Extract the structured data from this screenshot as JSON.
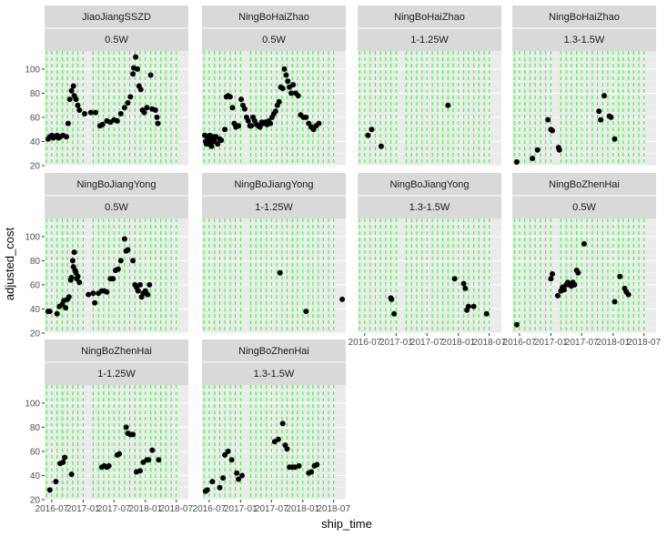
{
  "chart_data": {
    "type": "scatter",
    "xlabel": "ship_time",
    "ylabel": "adjusted_cost",
    "ylim": [
      20,
      115
    ],
    "yticks": [
      20,
      40,
      60,
      80,
      100
    ],
    "xlim": [
      "2016-05-20",
      "2018-09-10"
    ],
    "xticks": [
      "2016-07-01",
      "2017-01-01",
      "2017-07-01",
      "2018-01-01",
      "2018-07-01"
    ],
    "xtick_labels": [
      "2016-07",
      "2017-01",
      "2017-07",
      "2018-01",
      "2018-07"
    ],
    "vlines": [
      "2016-06-01",
      "2016-07-01",
      "2016-08-01",
      "2016-09-01",
      "2016-10-01",
      "2016-11-01",
      "2016-12-01",
      "2017-01-01",
      "2017-03-01",
      "2017-04-01",
      "2017-05-01",
      "2017-06-01",
      "2017-07-01",
      "2017-08-01",
      "2017-09-01",
      "2017-10-01",
      "2017-11-01",
      "2017-12-01",
      "2018-01-01",
      "2018-02-01",
      "2018-03-01",
      "2018-04-01",
      "2018-05-01",
      "2018-06-01",
      "2018-07-01"
    ],
    "vline_color": "#33ff33",
    "panel_background": "#ebebeb",
    "strip_background": "#d9d9d9",
    "point_color": "#000000",
    "panels": [
      {
        "row1": "JiaoJiangSSZD",
        "row2": "0.5W",
        "points": [
          [
            "2016-06-10",
            42
          ],
          [
            "2016-06-20",
            44
          ],
          [
            "2016-07-01",
            45
          ],
          [
            "2016-07-10",
            43
          ],
          [
            "2016-07-20",
            44
          ],
          [
            "2016-08-01",
            45
          ],
          [
            "2016-08-10",
            43
          ],
          [
            "2016-08-20",
            44
          ],
          [
            "2016-09-05",
            45
          ],
          [
            "2016-09-25",
            44
          ],
          [
            "2016-10-05",
            55
          ],
          [
            "2016-10-15",
            75
          ],
          [
            "2016-10-25",
            82
          ],
          [
            "2016-11-05",
            86
          ],
          [
            "2016-11-10",
            78
          ],
          [
            "2016-11-20",
            75
          ],
          [
            "2016-12-01",
            70
          ],
          [
            "2016-12-10",
            66
          ],
          [
            "2017-01-10",
            63
          ],
          [
            "2017-02-15",
            64
          ],
          [
            "2017-03-15",
            64
          ],
          [
            "2017-04-10",
            53
          ],
          [
            "2017-04-25",
            54
          ],
          [
            "2017-05-20",
            57
          ],
          [
            "2017-06-10",
            56
          ],
          [
            "2017-07-01",
            58
          ],
          [
            "2017-07-20",
            57
          ],
          [
            "2017-08-10",
            63
          ],
          [
            "2017-09-01",
            68
          ],
          [
            "2017-09-20",
            72
          ],
          [
            "2017-10-05",
            77
          ],
          [
            "2017-10-20",
            96
          ],
          [
            "2017-10-25",
            101
          ],
          [
            "2017-11-05",
            110
          ],
          [
            "2017-11-15",
            100
          ],
          [
            "2017-11-25",
            86
          ],
          [
            "2017-12-05",
            83
          ],
          [
            "2017-12-15",
            66
          ],
          [
            "2017-12-25",
            64
          ],
          [
            "2018-01-10",
            68
          ],
          [
            "2018-02-01",
            95
          ],
          [
            "2018-02-10",
            67
          ],
          [
            "2018-03-01",
            66
          ],
          [
            "2018-03-10",
            60
          ],
          [
            "2018-03-15",
            55
          ]
        ]
      },
      {
        "row1": "NingBoHaiZhao",
        "row2": "0.5W",
        "points": [
          [
            "2016-06-05",
            45
          ],
          [
            "2016-06-10",
            40
          ],
          [
            "2016-06-15",
            38
          ],
          [
            "2016-06-20",
            44
          ],
          [
            "2016-06-25",
            42
          ],
          [
            "2016-07-01",
            38
          ],
          [
            "2016-07-05",
            45
          ],
          [
            "2016-07-10",
            40
          ],
          [
            "2016-07-15",
            36
          ],
          [
            "2016-07-20",
            42
          ],
          [
            "2016-07-25",
            44
          ],
          [
            "2016-08-01",
            40
          ],
          [
            "2016-08-10",
            44
          ],
          [
            "2016-08-20",
            38
          ],
          [
            "2016-09-01",
            42
          ],
          [
            "2016-09-10",
            41
          ],
          [
            "2016-10-01",
            50
          ],
          [
            "2016-10-10",
            77
          ],
          [
            "2016-10-20",
            78
          ],
          [
            "2016-11-01",
            77
          ],
          [
            "2016-11-15",
            68
          ],
          [
            "2016-11-25",
            55
          ],
          [
            "2016-12-05",
            52
          ],
          [
            "2016-12-20",
            53
          ],
          [
            "2017-01-05",
            75
          ],
          [
            "2017-01-15",
            70
          ],
          [
            "2017-01-25",
            67
          ],
          [
            "2017-02-05",
            60
          ],
          [
            "2017-02-15",
            57
          ],
          [
            "2017-02-25",
            53
          ],
          [
            "2017-03-05",
            53
          ],
          [
            "2017-03-15",
            60
          ],
          [
            "2017-03-25",
            57
          ],
          [
            "2017-04-05",
            54
          ],
          [
            "2017-04-15",
            53
          ],
          [
            "2017-04-25",
            52
          ],
          [
            "2017-05-05",
            56
          ],
          [
            "2017-05-15",
            55
          ],
          [
            "2017-05-25",
            56
          ],
          [
            "2017-06-05",
            54
          ],
          [
            "2017-06-15",
            57
          ],
          [
            "2017-06-25",
            55
          ],
          [
            "2017-07-05",
            60
          ],
          [
            "2017-07-15",
            63
          ],
          [
            "2017-07-25",
            65
          ],
          [
            "2017-08-05",
            70
          ],
          [
            "2017-08-15",
            73
          ],
          [
            "2017-08-25",
            85
          ],
          [
            "2017-09-05",
            84
          ],
          [
            "2017-09-15",
            100
          ],
          [
            "2017-09-25",
            95
          ],
          [
            "2017-10-05",
            90
          ],
          [
            "2017-10-15",
            85
          ],
          [
            "2017-10-25",
            80
          ],
          [
            "2017-11-05",
            87
          ],
          [
            "2017-11-20",
            80
          ],
          [
            "2017-12-05",
            78
          ],
          [
            "2017-12-20",
            62
          ],
          [
            "2018-01-05",
            60
          ],
          [
            "2018-01-20",
            60
          ],
          [
            "2018-02-05",
            55
          ],
          [
            "2018-02-20",
            52
          ],
          [
            "2018-03-05",
            50
          ],
          [
            "2018-03-20",
            53
          ],
          [
            "2018-04-05",
            55
          ]
        ]
      },
      {
        "row1": "NingBoHaiZhao",
        "row2": "1-1.25W",
        "points": [
          [
            "2016-07-20",
            45
          ],
          [
            "2016-08-10",
            50
          ],
          [
            "2016-10-05",
            36
          ],
          [
            "2017-11-01",
            70
          ]
        ]
      },
      {
        "row1": "NingBoHaiZhao",
        "row2": "1.3-1.5W",
        "points": [
          [
            "2016-06-15",
            23
          ],
          [
            "2016-09-15",
            26
          ],
          [
            "2016-10-15",
            33
          ],
          [
            "2016-12-15",
            58
          ],
          [
            "2017-01-01",
            50
          ],
          [
            "2017-01-10",
            49
          ],
          [
            "2017-02-15",
            35
          ],
          [
            "2017-02-20",
            33
          ],
          [
            "2017-10-10",
            65
          ],
          [
            "2017-10-20",
            58
          ],
          [
            "2017-11-10",
            78
          ],
          [
            "2017-12-10",
            61
          ],
          [
            "2017-12-20",
            60
          ],
          [
            "2018-01-10",
            42
          ]
        ]
      },
      {
        "row1": "NingBoJiangYong",
        "row2": "0.5W",
        "points": [
          [
            "2016-06-10",
            38
          ],
          [
            "2016-06-20",
            38
          ],
          [
            "2016-08-01",
            36
          ],
          [
            "2016-08-15",
            42
          ],
          [
            "2016-09-01",
            44
          ],
          [
            "2016-09-10",
            47
          ],
          [
            "2016-09-20",
            41
          ],
          [
            "2016-10-01",
            48
          ],
          [
            "2016-10-10",
            50
          ],
          [
            "2016-10-20",
            64
          ],
          [
            "2016-10-25",
            66
          ],
          [
            "2016-11-01",
            80
          ],
          [
            "2016-11-05",
            75
          ],
          [
            "2016-11-10",
            87
          ],
          [
            "2016-11-15",
            72
          ],
          [
            "2016-11-20",
            70
          ],
          [
            "2016-11-25",
            65
          ],
          [
            "2016-12-01",
            67
          ],
          [
            "2016-12-10",
            62
          ],
          [
            "2017-02-01",
            52
          ],
          [
            "2017-03-01",
            53
          ],
          [
            "2017-03-10",
            45
          ],
          [
            "2017-04-01",
            53
          ],
          [
            "2017-04-20",
            55
          ],
          [
            "2017-05-05",
            55
          ],
          [
            "2017-05-20",
            54
          ],
          [
            "2017-06-10",
            65
          ],
          [
            "2017-06-25",
            65
          ],
          [
            "2017-07-10",
            72
          ],
          [
            "2017-07-25",
            73
          ],
          [
            "2017-08-10",
            80
          ],
          [
            "2017-09-01",
            98
          ],
          [
            "2017-09-10",
            88
          ],
          [
            "2017-09-20",
            89
          ],
          [
            "2017-10-20",
            80
          ],
          [
            "2017-11-01",
            60
          ],
          [
            "2017-11-10",
            58
          ],
          [
            "2017-11-20",
            55
          ],
          [
            "2017-12-01",
            60
          ],
          [
            "2017-12-10",
            50
          ],
          [
            "2017-12-20",
            53
          ],
          [
            "2018-01-01",
            55
          ],
          [
            "2018-01-15",
            52
          ],
          [
            "2018-01-25",
            60
          ]
        ]
      },
      {
        "row1": "NingBoJiangYong",
        "row2": "1-1.25W",
        "points": [
          [
            "2017-08-20",
            70
          ],
          [
            "2018-01-20",
            38
          ],
          [
            "2018-08-20",
            48
          ]
        ]
      },
      {
        "row1": "NingBoJiangYong",
        "row2": "1.3-1.5W",
        "points": [
          [
            "2016-12-01",
            49
          ],
          [
            "2016-12-05",
            48
          ],
          [
            "2016-12-20",
            36
          ],
          [
            "2017-12-10",
            65
          ],
          [
            "2018-02-01",
            61
          ],
          [
            "2018-02-10",
            57
          ],
          [
            "2018-02-20",
            39
          ],
          [
            "2018-03-01",
            42
          ],
          [
            "2018-04-01",
            42
          ],
          [
            "2018-06-15",
            36
          ]
        ]
      },
      {
        "row1": "NingBoZhenHai",
        "row2": "0.5W",
        "points": [
          [
            "2016-06-15",
            27
          ],
          [
            "2017-01-01",
            65
          ],
          [
            "2017-01-10",
            69
          ],
          [
            "2017-02-10",
            51
          ],
          [
            "2017-03-01",
            55
          ],
          [
            "2017-03-10",
            58
          ],
          [
            "2017-03-20",
            56
          ],
          [
            "2017-04-01",
            60
          ],
          [
            "2017-04-10",
            62
          ],
          [
            "2017-04-20",
            60
          ],
          [
            "2017-05-01",
            59
          ],
          [
            "2017-05-10",
            62
          ],
          [
            "2017-05-20",
            60
          ],
          [
            "2017-06-01",
            72
          ],
          [
            "2017-06-10",
            70
          ],
          [
            "2017-07-15",
            94
          ],
          [
            "2018-01-10",
            46
          ],
          [
            "2018-02-10",
            67
          ],
          [
            "2018-03-10",
            57
          ],
          [
            "2018-03-20",
            54
          ],
          [
            "2018-04-01",
            52
          ]
        ]
      },
      {
        "row1": "NingBoZhenHai",
        "row2": "1-1.25W",
        "points": [
          [
            "2016-06-20",
            28
          ],
          [
            "2016-07-25",
            35
          ],
          [
            "2016-08-20",
            50
          ],
          [
            "2016-09-05",
            51
          ],
          [
            "2016-09-15",
            55
          ],
          [
            "2016-10-25",
            41
          ],
          [
            "2017-04-20",
            47
          ],
          [
            "2017-05-05",
            48
          ],
          [
            "2017-05-20",
            47
          ],
          [
            "2017-06-01",
            48
          ],
          [
            "2017-07-20",
            57
          ],
          [
            "2017-08-01",
            58
          ],
          [
            "2017-09-10",
            80
          ],
          [
            "2017-09-20",
            75
          ],
          [
            "2017-10-05",
            74
          ],
          [
            "2017-10-20",
            74
          ],
          [
            "2017-11-10",
            43
          ],
          [
            "2017-12-01",
            44
          ],
          [
            "2017-12-20",
            51
          ],
          [
            "2018-01-10",
            53
          ],
          [
            "2018-01-20",
            53
          ],
          [
            "2018-02-10",
            61
          ],
          [
            "2018-03-20",
            53
          ]
        ]
      },
      {
        "row1": "NingBoZhenHai",
        "row2": "1.3-1.5W",
        "points": [
          [
            "2016-06-10",
            27
          ],
          [
            "2016-06-20",
            28
          ],
          [
            "2016-07-20",
            35
          ],
          [
            "2016-09-01",
            30
          ],
          [
            "2016-09-20",
            38
          ],
          [
            "2016-10-01",
            57
          ],
          [
            "2016-10-20",
            60
          ],
          [
            "2016-11-10",
            53
          ],
          [
            "2016-12-10",
            42
          ],
          [
            "2016-12-20",
            37
          ],
          [
            "2017-01-10",
            40
          ],
          [
            "2017-07-20",
            68
          ],
          [
            "2017-08-10",
            70
          ],
          [
            "2017-09-05",
            83
          ],
          [
            "2017-09-20",
            65
          ],
          [
            "2017-10-01",
            62
          ],
          [
            "2017-10-15",
            47
          ],
          [
            "2017-11-01",
            47
          ],
          [
            "2017-11-15",
            47
          ],
          [
            "2017-12-10",
            48
          ],
          [
            "2018-02-05",
            42
          ],
          [
            "2018-02-20",
            43
          ],
          [
            "2018-03-10",
            48
          ],
          [
            "2018-03-25",
            49
          ]
        ]
      }
    ]
  }
}
